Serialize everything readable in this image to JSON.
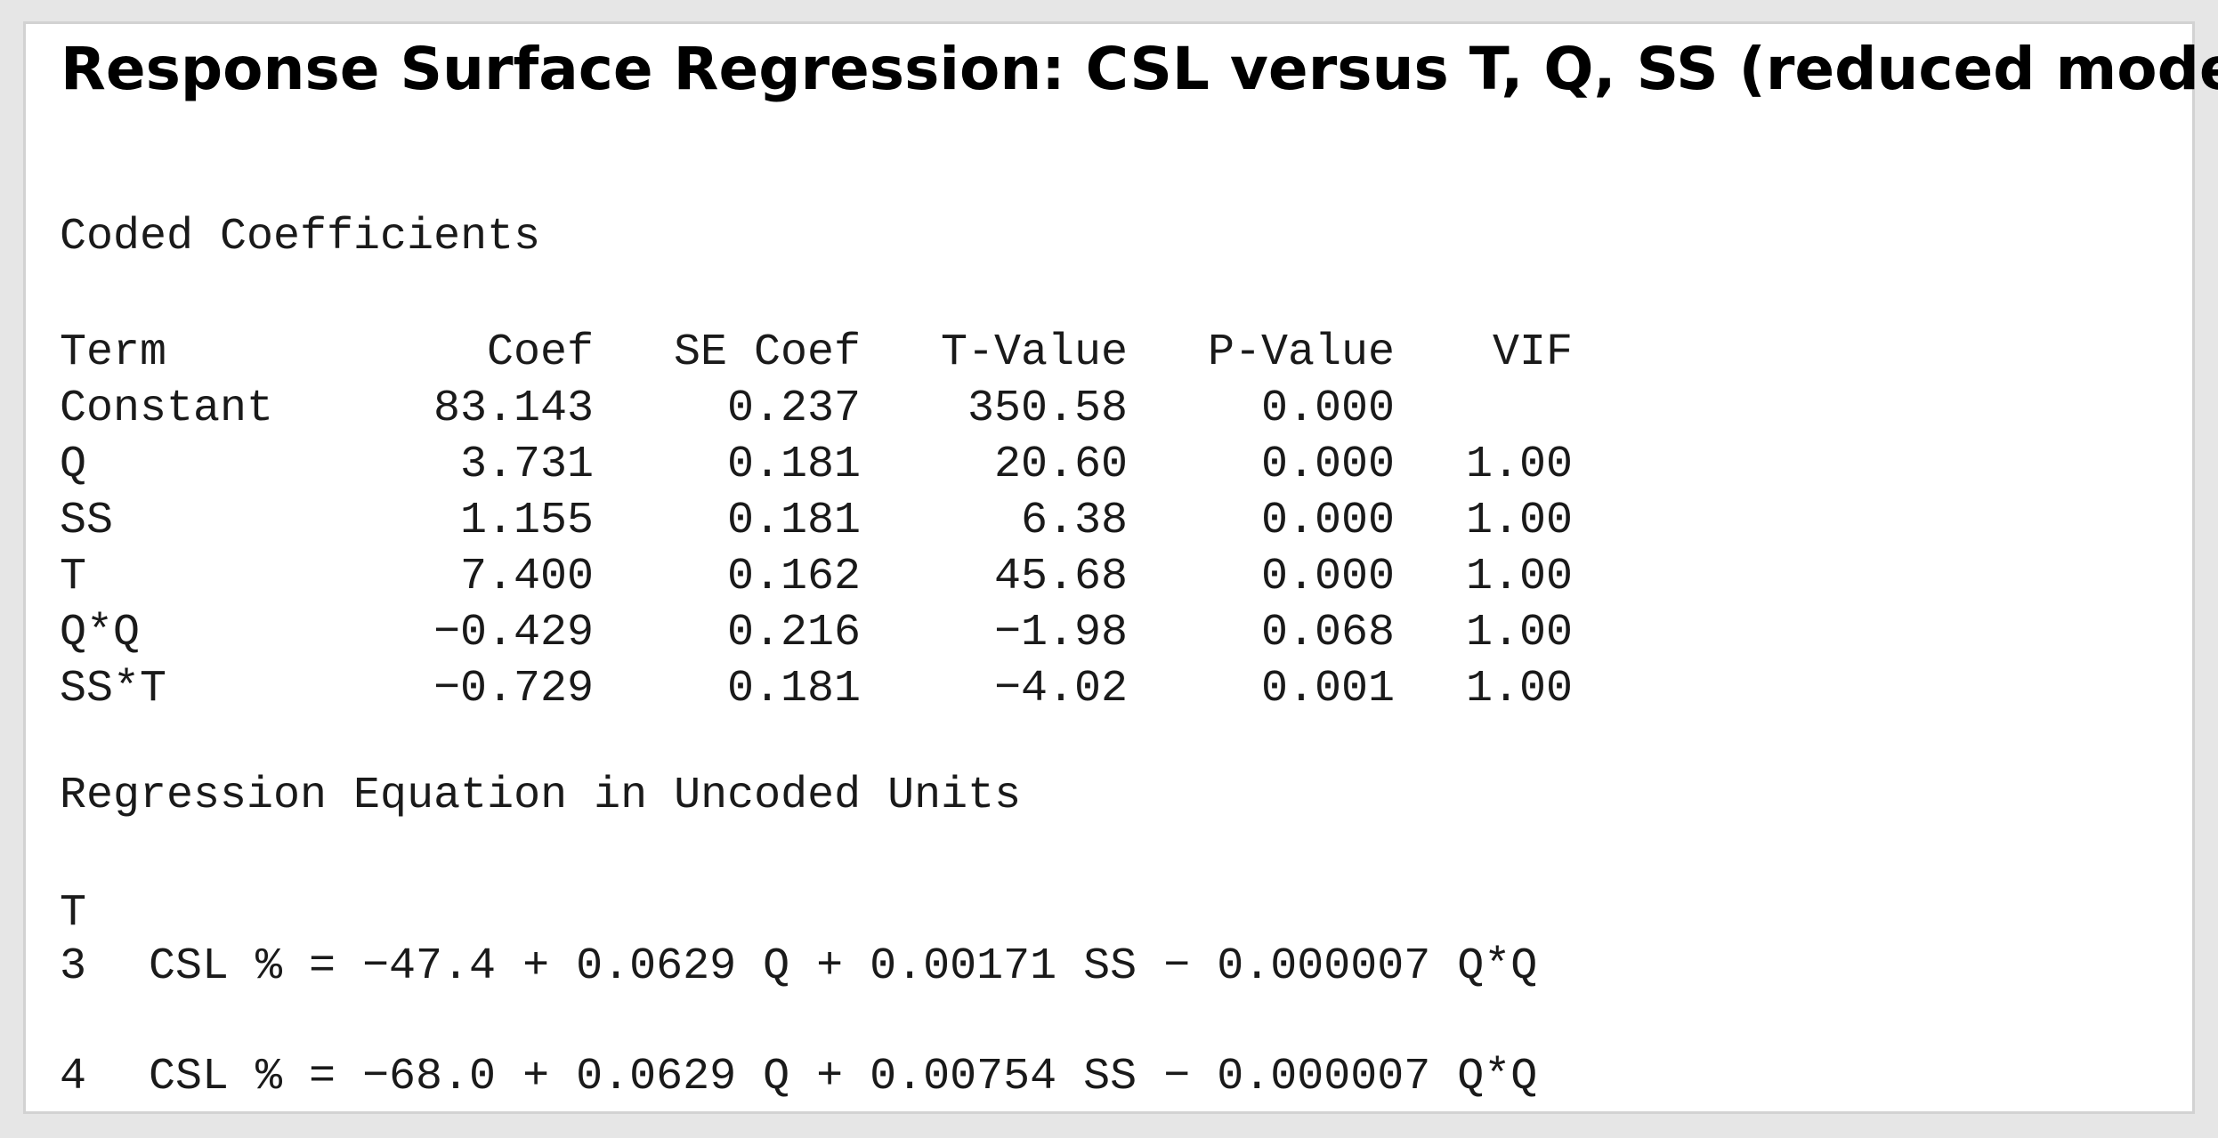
{
  "title": "Response Surface Regression: CSL versus T, Q, SS (reduced model)",
  "coded_coefficients": {
    "heading": "Coded Coefficients",
    "columns": [
      "Term",
      "Coef",
      "SE Coef",
      "T-Value",
      "P-Value",
      "VIF"
    ],
    "rows": [
      [
        "Constant",
        "83.143",
        "0.237",
        "350.58",
        "0.000",
        ""
      ],
      [
        "Q",
        "3.731",
        "0.181",
        "20.60",
        "0.000",
        "1.00"
      ],
      [
        "SS",
        "1.155",
        "0.181",
        "6.38",
        "0.000",
        "1.00"
      ],
      [
        "T",
        "7.400",
        "0.162",
        "45.68",
        "0.000",
        "1.00"
      ],
      [
        "Q*Q",
        "−0.429",
        "0.216",
        "−1.98",
        "0.068",
        "1.00"
      ],
      [
        "SS*T",
        "−0.729",
        "0.181",
        "−4.02",
        "0.001",
        "1.00"
      ]
    ]
  },
  "regression_equation": {
    "heading": "Regression Equation in Uncoded Units",
    "factor_label": "T",
    "equations": [
      {
        "level": "3",
        "text": "CSL % = −47.4 + 0.0629 Q + 0.00171 SS − 0.000007 Q*Q"
      },
      {
        "level": "4",
        "text": "CSL % = −68.0 + 0.0629 Q + 0.00754 SS − 0.000007 Q*Q"
      }
    ]
  }
}
